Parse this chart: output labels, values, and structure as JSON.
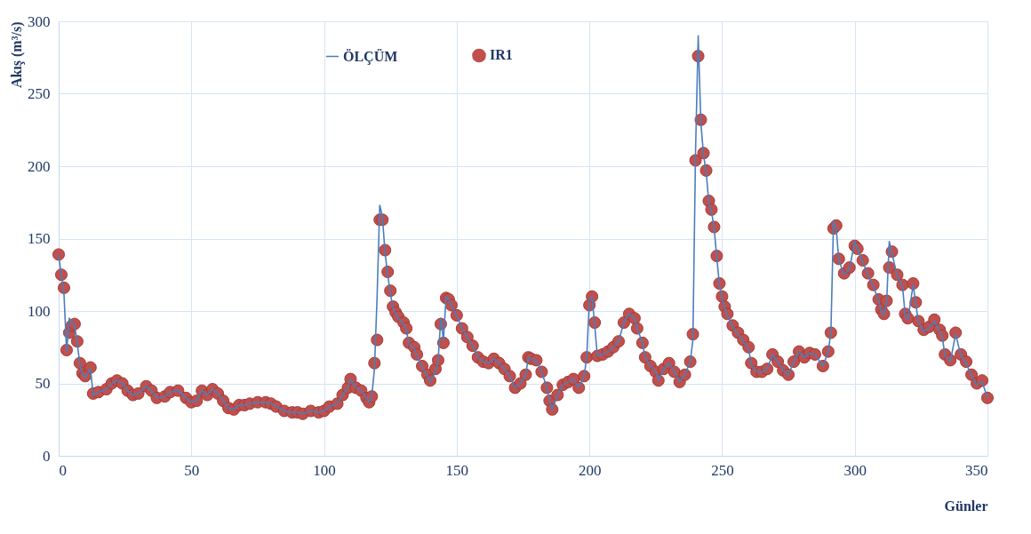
{
  "chart_data": {
    "type": "line",
    "xlabel": "Günler",
    "ylabel": "Akış (m³/s)",
    "xlim": [
      0,
      350
    ],
    "xticks": [
      0,
      50,
      100,
      150,
      200,
      250,
      300,
      350
    ],
    "ylim": [
      0,
      300
    ],
    "yticks": [
      0,
      50,
      100,
      150,
      200,
      250,
      300
    ],
    "grid": true,
    "legend": "top",
    "series": [
      {
        "name": "ÖLÇÜM",
        "color": "#4a7ebb",
        "marker": "none",
        "line_style": "solid",
        "x": [
          0,
          1,
          2,
          3,
          4,
          5,
          6,
          7,
          8,
          9,
          10,
          12,
          13,
          15,
          18,
          20,
          22,
          24,
          26,
          28,
          30,
          33,
          35,
          37,
          40,
          42,
          45,
          48,
          50,
          52,
          54,
          56,
          58,
          60,
          62,
          64,
          66,
          68,
          70,
          72,
          75,
          78,
          80,
          82,
          85,
          88,
          90,
          92,
          95,
          98,
          100,
          102,
          105,
          107,
          109,
          110,
          112,
          114,
          116,
          117,
          118,
          119,
          120,
          121,
          122,
          123,
          124,
          125,
          126,
          127,
          128,
          130,
          131,
          132,
          134,
          135,
          137,
          139,
          140,
          142,
          143,
          144,
          145,
          146,
          147,
          148,
          150,
          152,
          154,
          156,
          158,
          160,
          162,
          164,
          166,
          168,
          170,
          172,
          174,
          176,
          177,
          178,
          180,
          182,
          184,
          185,
          186,
          188,
          190,
          192,
          194,
          196,
          198,
          199,
          200,
          201,
          202,
          203,
          205,
          207,
          209,
          211,
          213,
          215,
          217,
          218,
          220,
          221,
          223,
          225,
          226,
          228,
          230,
          232,
          234,
          236,
          238,
          239,
          240,
          241,
          242,
          243,
          244,
          245,
          246,
          247,
          248,
          249,
          250,
          251,
          252,
          254,
          256,
          258,
          260,
          261,
          263,
          265,
          267,
          269,
          271,
          273,
          275,
          277,
          279,
          281,
          283,
          285,
          288,
          290,
          291,
          292,
          293,
          294,
          296,
          298,
          300,
          301,
          303,
          305,
          307,
          309,
          310,
          311,
          312,
          313,
          314,
          316,
          318,
          319,
          320,
          322,
          323,
          324,
          326,
          328,
          330,
          332,
          333,
          334,
          336,
          338,
          340,
          342,
          344,
          346,
          348,
          350
        ],
        "values": [
          139,
          124,
          112,
          72,
          95,
          92,
          90,
          78,
          63,
          56,
          54,
          60,
          42,
          44,
          46,
          50,
          52,
          50,
          45,
          42,
          43,
          48,
          45,
          40,
          41,
          44,
          45,
          40,
          37,
          38,
          45,
          42,
          46,
          43,
          38,
          33,
          32,
          35,
          35,
          36,
          37,
          37,
          36,
          34,
          31,
          30,
          30,
          29,
          31,
          30,
          31,
          34,
          36,
          42,
          47,
          53,
          47,
          45,
          40,
          37,
          41,
          60,
          110,
          173,
          165,
          140,
          125,
          112,
          102,
          98,
          95,
          91,
          87,
          77,
          74,
          69,
          61,
          55,
          51,
          58,
          66,
          95,
          80,
          110,
          108,
          104,
          97,
          88,
          82,
          76,
          68,
          65,
          64,
          67,
          64,
          60,
          55,
          47,
          50,
          56,
          68,
          67,
          66,
          58,
          47,
          38,
          32,
          42,
          49,
          51,
          53,
          47,
          55,
          68,
          108,
          110,
          90,
          69,
          70,
          72,
          75,
          79,
          92,
          98,
          95,
          88,
          78,
          68,
          62,
          58,
          52,
          60,
          64,
          58,
          51,
          56,
          65,
          80,
          210,
          290,
          230,
          208,
          196,
          175,
          169,
          157,
          137,
          118,
          109,
          102,
          97,
          89,
          84,
          79,
          74,
          63,
          58,
          58,
          60,
          70,
          65,
          59,
          56,
          65,
          72,
          68,
          71,
          70,
          62,
          72,
          85,
          162,
          157,
          135,
          125,
          129,
          148,
          143,
          134,
          125,
          117,
          107,
          100,
          97,
          106,
          148,
          140,
          124,
          117,
          97,
          94,
          118,
          105,
          92,
          86,
          88,
          93,
          86,
          82,
          69,
          65,
          84,
          69,
          64,
          55,
          49,
          51,
          40
        ]
      },
      {
        "name": "IR1",
        "type": "scatter",
        "color": "#c0504d",
        "marker": "circle",
        "x": [
          0,
          1,
          2,
          3,
          4,
          5,
          6,
          7,
          8,
          9,
          10,
          12,
          13,
          15,
          18,
          20,
          22,
          24,
          26,
          28,
          30,
          33,
          35,
          37,
          40,
          42,
          45,
          48,
          50,
          52,
          54,
          56,
          58,
          60,
          62,
          64,
          66,
          68,
          70,
          72,
          75,
          78,
          80,
          82,
          85,
          88,
          90,
          92,
          95,
          98,
          100,
          102,
          105,
          107,
          109,
          110,
          112,
          114,
          116,
          117,
          118,
          119,
          120,
          121,
          122,
          123,
          124,
          125,
          126,
          127,
          128,
          130,
          131,
          132,
          134,
          135,
          137,
          139,
          140,
          142,
          143,
          144,
          145,
          146,
          147,
          148,
          150,
          152,
          154,
          156,
          158,
          160,
          162,
          164,
          166,
          168,
          170,
          172,
          174,
          176,
          177,
          178,
          180,
          182,
          184,
          185,
          186,
          188,
          190,
          192,
          194,
          196,
          198,
          199,
          200,
          201,
          202,
          203,
          205,
          207,
          209,
          211,
          213,
          215,
          217,
          218,
          220,
          221,
          223,
          225,
          226,
          228,
          230,
          232,
          234,
          236,
          238,
          239,
          240,
          241,
          242,
          243,
          244,
          245,
          246,
          247,
          248,
          249,
          250,
          251,
          252,
          254,
          256,
          258,
          260,
          261,
          263,
          265,
          267,
          269,
          271,
          273,
          275,
          277,
          279,
          281,
          283,
          285,
          288,
          290,
          291,
          292,
          293,
          294,
          296,
          298,
          300,
          301,
          303,
          305,
          307,
          309,
          310,
          311,
          312,
          313,
          314,
          316,
          318,
          319,
          320,
          322,
          323,
          324,
          326,
          328,
          330,
          332,
          333,
          334,
          336,
          338,
          340,
          342,
          344,
          346,
          348,
          350
        ],
        "values": [
          139,
          125,
          116,
          73,
          85,
          90,
          91,
          79,
          64,
          57,
          55,
          61,
          43,
          44,
          46,
          50,
          52,
          50,
          45,
          42,
          43,
          48,
          45,
          40,
          41,
          44,
          45,
          40,
          37,
          38,
          45,
          42,
          46,
          43,
          38,
          33,
          32,
          35,
          35,
          36,
          37,
          37,
          36,
          34,
          31,
          30,
          30,
          29,
          31,
          30,
          31,
          34,
          36,
          42,
          47,
          53,
          47,
          45,
          40,
          37,
          41,
          64,
          80,
          163,
          163,
          142,
          127,
          114,
          103,
          99,
          96,
          92,
          88,
          78,
          75,
          70,
          62,
          56,
          52,
          60,
          66,
          91,
          78,
          109,
          108,
          104,
          97,
          88,
          82,
          76,
          68,
          65,
          64,
          67,
          64,
          60,
          55,
          47,
          50,
          56,
          68,
          67,
          66,
          58,
          47,
          38,
          32,
          42,
          49,
          51,
          53,
          47,
          55,
          68,
          104,
          110,
          92,
          69,
          70,
          72,
          75,
          79,
          92,
          98,
          95,
          88,
          78,
          68,
          62,
          58,
          52,
          60,
          64,
          58,
          51,
          56,
          65,
          84,
          204,
          276,
          232,
          209,
          197,
          176,
          170,
          158,
          138,
          119,
          110,
          103,
          98,
          90,
          85,
          80,
          75,
          64,
          58,
          58,
          60,
          70,
          65,
          59,
          56,
          65,
          72,
          68,
          71,
          70,
          62,
          72,
          85,
          157,
          159,
          136,
          126,
          130,
          145,
          143,
          135,
          126,
          118,
          108,
          101,
          98,
          107,
          130,
          141,
          125,
          118,
          98,
          95,
          119,
          106,
          93,
          87,
          89,
          94,
          87,
          83,
          70,
          66,
          85,
          70,
          65,
          56,
          50,
          52,
          40
        ]
      }
    ]
  }
}
